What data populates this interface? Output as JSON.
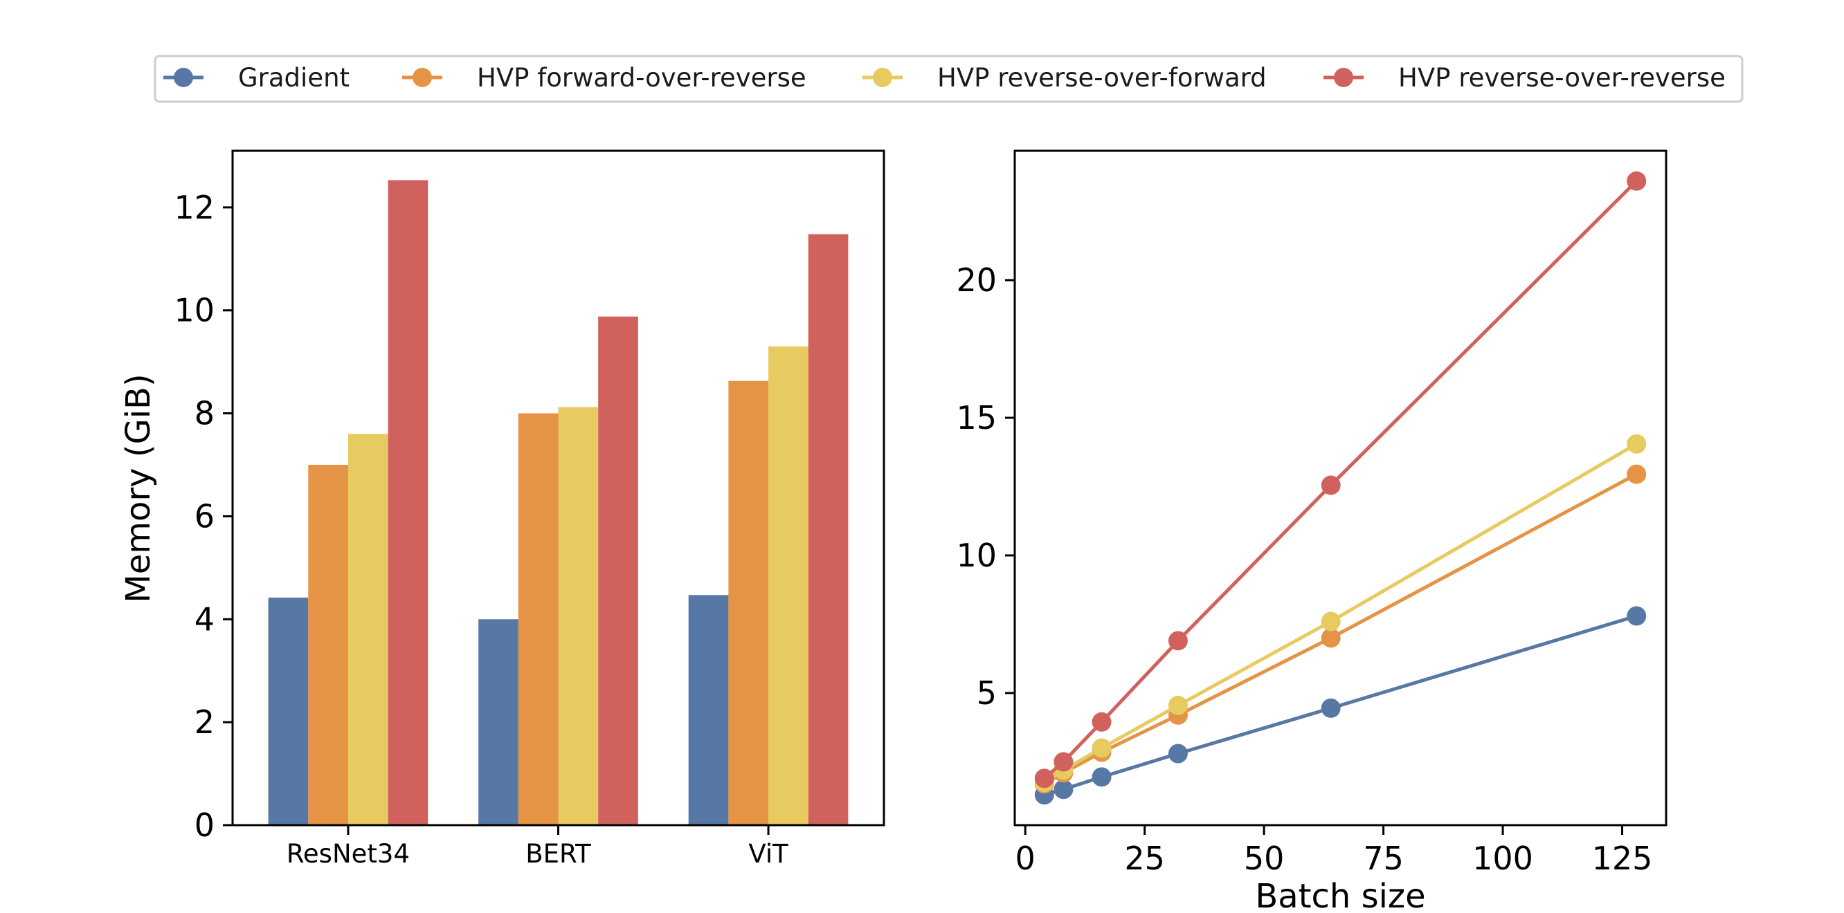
{
  "colors": {
    "Gradient": "#5778a4",
    "HVP forward-over-reverse": "#e49444",
    "HVP reverse-over-forward": "#e7ca60",
    "HVP reverse-over-reverse": "#d1615d"
  },
  "legend": {
    "entries": [
      "Gradient",
      "HVP forward-over-reverse",
      "HVP reverse-over-forward",
      "HVP reverse-over-reverse"
    ],
    "placement": "top-center"
  },
  "chart_data": [
    {
      "type": "bar",
      "title": "",
      "xlabel": "",
      "ylabel": "Memory (GiB)",
      "categories": [
        "ResNet34",
        "BERT",
        "ViT"
      ],
      "ylim": [
        0,
        13.1
      ],
      "yticks": [
        0,
        2,
        4,
        6,
        8,
        10,
        12
      ],
      "grid": false,
      "series": [
        {
          "name": "Gradient",
          "values": [
            4.42,
            4.0,
            4.47
          ]
        },
        {
          "name": "HVP forward-over-reverse",
          "values": [
            7.0,
            8.0,
            8.63
          ]
        },
        {
          "name": "HVP reverse-over-forward",
          "values": [
            7.6,
            8.12,
            9.3
          ]
        },
        {
          "name": "HVP reverse-over-reverse",
          "values": [
            12.53,
            9.88,
            11.48
          ]
        }
      ]
    },
    {
      "type": "line",
      "title": "",
      "xlabel": "Batch size",
      "ylabel": "",
      "x": [
        4,
        8,
        16,
        32,
        64,
        128
      ],
      "xlim": [
        -2.2,
        134.2
      ],
      "ylim": [
        0.2,
        24.7
      ],
      "xticks": [
        0,
        25,
        50,
        75,
        100,
        125
      ],
      "yticks": [
        5,
        10,
        15,
        20
      ],
      "grid": false,
      "series": [
        {
          "name": "Gradient",
          "values": [
            1.3,
            1.5,
            1.95,
            2.8,
            4.45,
            7.8
          ]
        },
        {
          "name": "HVP forward-over-reverse",
          "values": [
            1.7,
            2.1,
            2.85,
            4.2,
            7.0,
            12.95
          ]
        },
        {
          "name": "HVP reverse-over-forward",
          "values": [
            1.75,
            2.2,
            3.0,
            4.55,
            7.6,
            14.05
          ]
        },
        {
          "name": "HVP reverse-over-reverse",
          "values": [
            1.9,
            2.5,
            3.95,
            6.9,
            12.55,
            23.6
          ]
        }
      ]
    }
  ]
}
